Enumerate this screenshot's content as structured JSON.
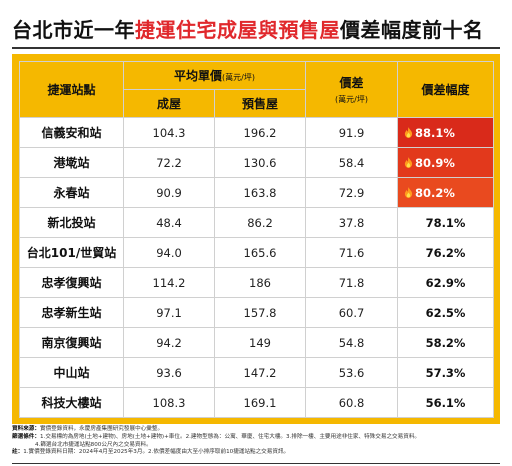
{
  "title": {
    "prefix": "台北市近一年",
    "highlight": "捷運住宅成屋與預售屋",
    "suffix": "價差幅度前十名"
  },
  "table": {
    "headers": {
      "station": "捷運站點",
      "avg_price": "平均單價",
      "avg_unit": "(萬元/坪)",
      "existing": "成屋",
      "presale": "預售屋",
      "diff": "價差",
      "diff_unit": "(萬元/坪)",
      "ratio": "價差幅度"
    }
  },
  "chart_data": {
    "type": "table",
    "title": "台北市近一年捷運住宅成屋與預售屋價差幅度前十名",
    "columns": [
      "捷運站點",
      "成屋",
      "預售屋",
      "價差",
      "價差幅度"
    ],
    "rows": [
      {
        "station": "信義安和站",
        "existing": "104.3",
        "presale": "196.2",
        "diff": "91.9",
        "ratio": "88.1%",
        "hot": true
      },
      {
        "station": "港墘站",
        "existing": "72.2",
        "presale": "130.6",
        "diff": "58.4",
        "ratio": "80.9%",
        "hot": true
      },
      {
        "station": "永春站",
        "existing": "90.9",
        "presale": "163.8",
        "diff": "72.9",
        "ratio": "80.2%",
        "hot": true
      },
      {
        "station": "新北投站",
        "existing": "48.4",
        "presale": "86.2",
        "diff": "37.8",
        "ratio": "78.1%",
        "hot": false
      },
      {
        "station": "台北101/世貿站",
        "existing": "94.0",
        "presale": "165.6",
        "diff": "71.6",
        "ratio": "76.2%",
        "hot": false
      },
      {
        "station": "忠孝復興站",
        "existing": "114.2",
        "presale": "186",
        "diff": "71.8",
        "ratio": "62.9%",
        "hot": false
      },
      {
        "station": "忠孝新生站",
        "existing": "97.1",
        "presale": "157.8",
        "diff": "60.7",
        "ratio": "62.5%",
        "hot": false
      },
      {
        "station": "南京復興站",
        "existing": "94.2",
        "presale": "149",
        "diff": "54.8",
        "ratio": "58.2%",
        "hot": false
      },
      {
        "station": "中山站",
        "existing": "93.6",
        "presale": "147.2",
        "diff": "53.6",
        "ratio": "57.3%",
        "hot": false
      },
      {
        "station": "科技大樓站",
        "existing": "108.3",
        "presale": "169.1",
        "diff": "60.8",
        "ratio": "56.1%",
        "hot": false
      }
    ],
    "colors": {
      "header": "#f5b800",
      "hot1": "#d92a1a",
      "hot2": "#e2391c",
      "hot3": "#e94a1f"
    }
  },
  "notes": {
    "source_label": "資料來源：",
    "source_text": "實價登錄資料，永慶房產集團研究發展中心彙整。",
    "filter_label": "篩選條件：",
    "filter_text": "1.交易標的為房地(土地+建物)、房地(土地+建物)+車位。2.建物型態為：公寓、華廈、住宅大樓。3.排除一樓、主要用途非住家、特殊交易之交易資料。",
    "filter_text2": "4.篩選台北市捷運站點800公尺內之交易資料。",
    "note_label": "註：",
    "note_text": "1.實價登錄資料日期：2024年4月至2025年3月。2.依價差幅度由大至小排序取前10捷運站點之交易資訊。"
  }
}
